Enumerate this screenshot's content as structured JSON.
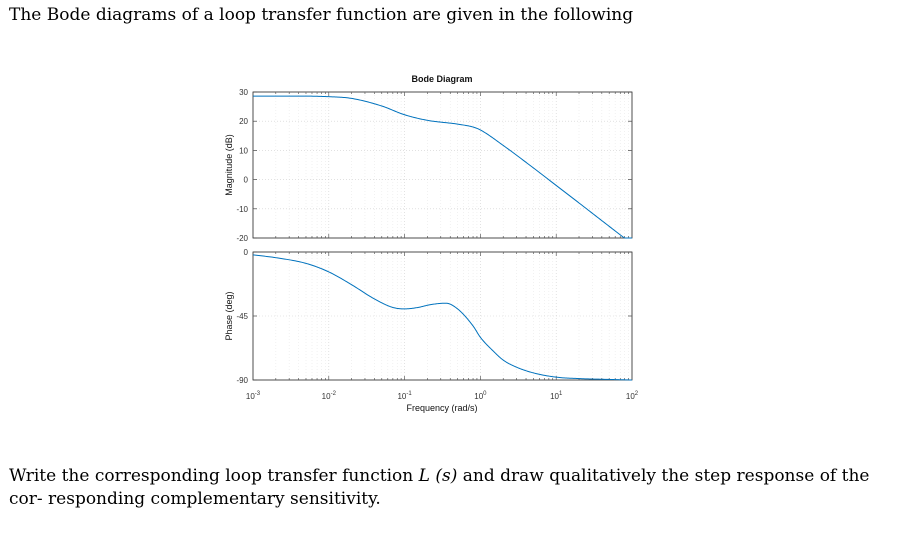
{
  "intro_text": "The Bode diagrams of a loop transfer function are given in the following",
  "question": {
    "part1": "Write the corresponding loop transfer function ",
    "math": "L (s)",
    "part2": " and draw qualitatively the step response of the cor- responding complementary sensitivity."
  },
  "chart_data": {
    "type": "line",
    "title": "Bode Diagram",
    "xlabel": "Frequency  (rad/s)",
    "xscale": "log",
    "xlim": [
      0.001,
      100
    ],
    "x_tick_labels": [
      {
        "base": "10",
        "exp": "-3"
      },
      {
        "base": "10",
        "exp": "-2"
      },
      {
        "base": "10",
        "exp": "-1"
      },
      {
        "base": "10",
        "exp": "0"
      },
      {
        "base": "10",
        "exp": "1"
      },
      {
        "base": "10",
        "exp": "2"
      }
    ],
    "grid": true,
    "line_color": "#0072BD",
    "magnitude": {
      "ylabel": "Magnitude (dB)",
      "ylim": [
        -20,
        30
      ],
      "yticks": [
        30,
        20,
        10,
        0,
        -10,
        -20
      ],
      "x": [
        0.001,
        0.003,
        0.01,
        0.02,
        0.05,
        0.1,
        0.2,
        0.5,
        0.8,
        1,
        2,
        5,
        10,
        20,
        50,
        100
      ],
      "values": [
        28.6,
        28.6,
        28.4,
        27.8,
        25.2,
        22.2,
        20.3,
        19.0,
        18.0,
        17.0,
        11.7,
        4.0,
        -2.0,
        -8.0,
        -16.0,
        -22.0
      ]
    },
    "phase": {
      "ylabel": "Phase (deg)",
      "ylim": [
        -90,
        0
      ],
      "yticks": [
        0,
        -45,
        -90
      ],
      "x": [
        0.001,
        0.002,
        0.005,
        0.01,
        0.02,
        0.04,
        0.07,
        0.1,
        0.15,
        0.22,
        0.35,
        0.5,
        0.8,
        1,
        1.5,
        2,
        3,
        5,
        10,
        20,
        50,
        100
      ],
      "values": [
        -2,
        -4,
        -8,
        -14,
        -23,
        -33,
        -39,
        -40,
        -39,
        -37,
        -36,
        -40,
        -52,
        -60,
        -70,
        -76,
        -81,
        -85,
        -88,
        -89,
        -89.6,
        -90
      ]
    }
  }
}
